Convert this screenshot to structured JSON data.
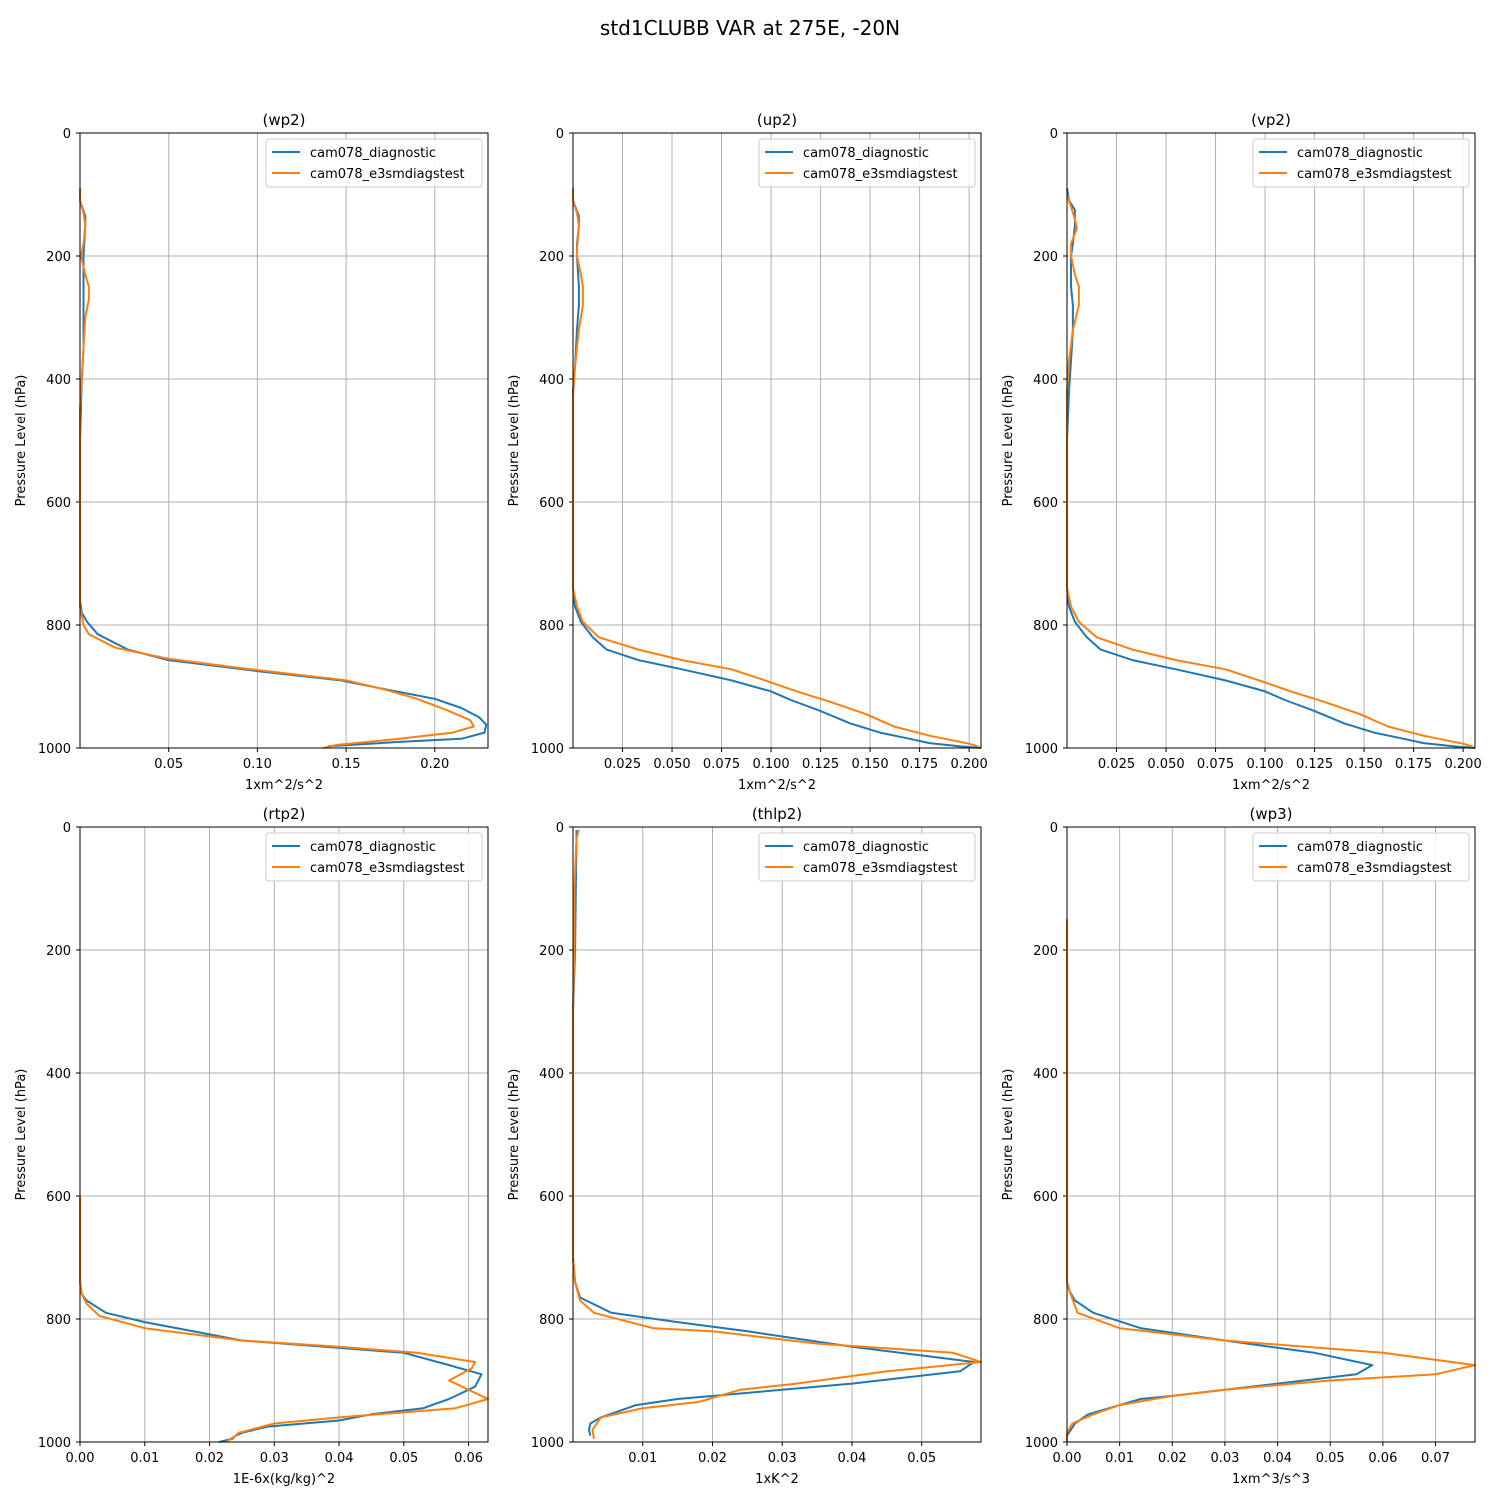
{
  "figure": {
    "suptitle": "std1CLUBB VAR at 275E, -20N",
    "colors": {
      "series0": "#1f77b4",
      "series1": "#ff7f0e",
      "grid": "#b0b0b0"
    }
  },
  "chart_data": [
    {
      "type": "line",
      "title": "(wp2)",
      "xlabel": "1xm^2/s^2",
      "ylabel": "Pressure Level (hPa)",
      "xlim": [
        0.0,
        0.23
      ],
      "ylim": [
        1000,
        0
      ],
      "xticks": [
        0.05,
        0.1,
        0.15,
        0.2
      ],
      "xtick_labels": [
        "0.05",
        "0.10",
        "0.15",
        "0.20"
      ],
      "yticks": [
        0,
        200,
        400,
        600,
        800,
        1000
      ],
      "ytick_labels": [
        "0",
        "200",
        "400",
        "600",
        "800",
        "1000"
      ],
      "grid": true,
      "legend": "upper right",
      "series": [
        {
          "name": "cam078_diagnostic",
          "color": "#1f77b4",
          "x": [
            0,
            0,
            0.003,
            0.003,
            0.002,
            0.002,
            0.002,
            0.002,
            0.002,
            0.001,
            0.0005,
            0,
            0,
            0,
            0,
            0,
            0.001,
            0.004,
            0.01,
            0.027,
            0.05,
            0.1,
            0.147,
            0.173,
            0.2,
            0.215,
            0.225,
            0.229,
            0.228,
            0.215,
            0.18,
            0.14
          ],
          "y": [
            90,
            110,
            135,
            150,
            200,
            250,
            280,
            300,
            350,
            400,
            450,
            500,
            600,
            700,
            740,
            760,
            780,
            795,
            815,
            840,
            857,
            875,
            890,
            905,
            920,
            935,
            950,
            962,
            975,
            985,
            990,
            997
          ]
        },
        {
          "name": "cam078_e3smdiagstest",
          "color": "#ff7f0e",
          "x": [
            0,
            0,
            0.002,
            0.003,
            0.002,
            0.0005,
            0.003,
            0.005,
            0.005,
            0.003,
            0.002,
            0.001,
            0,
            0,
            0,
            0,
            0.002,
            0.005,
            0.02,
            0.05,
            0.09,
            0.15,
            0.172,
            0.19,
            0.208,
            0.22,
            0.222,
            0.21,
            0.18,
            0.145,
            0.137
          ],
          "y": [
            90,
            110,
            130,
            150,
            180,
            200,
            230,
            250,
            270,
            300,
            350,
            400,
            450,
            600,
            740,
            770,
            800,
            815,
            837,
            855,
            870,
            890,
            905,
            920,
            940,
            955,
            965,
            975,
            985,
            995,
            1000
          ]
        }
      ]
    },
    {
      "type": "line",
      "title": "(up2)",
      "xlabel": "1xm^2/s^2",
      "ylabel": "Pressure Level (hPa)",
      "xlim": [
        0.0,
        0.206
      ],
      "ylim": [
        1000,
        0
      ],
      "xticks": [
        0.025,
        0.05,
        0.075,
        0.1,
        0.125,
        0.15,
        0.175,
        0.2
      ],
      "xtick_labels": [
        "0.025",
        "0.050",
        "0.075",
        "0.100",
        "0.125",
        "0.150",
        "0.175",
        "0.200"
      ],
      "yticks": [
        0,
        200,
        400,
        600,
        800,
        1000
      ],
      "ytick_labels": [
        "0",
        "200",
        "400",
        "600",
        "800",
        "1000"
      ],
      "grid": true,
      "legend": "upper right",
      "series": [
        {
          "name": "cam078_diagnostic",
          "color": "#1f77b4",
          "x": [
            0,
            0,
            0.003,
            0.003,
            0.002,
            0.002,
            0.003,
            0.003,
            0.002,
            0.001,
            0,
            0,
            0,
            0,
            0,
            0.001,
            0.004,
            0.01,
            0.017,
            0.033,
            0.055,
            0.08,
            0.1,
            0.11,
            0.125,
            0.14,
            0.155,
            0.17,
            0.18,
            0.195,
            0.206
          ],
          "y": [
            90,
            110,
            135,
            150,
            180,
            200,
            250,
            280,
            320,
            380,
            420,
            500,
            600,
            700,
            740,
            770,
            795,
            820,
            840,
            857,
            872,
            890,
            908,
            922,
            940,
            960,
            975,
            985,
            992,
            997,
            1000
          ]
        },
        {
          "name": "cam078_e3smdiagstest",
          "color": "#ff7f0e",
          "x": [
            0,
            0,
            0.002,
            0.003,
            0.002,
            0.002,
            0.004,
            0.005,
            0.005,
            0.003,
            0.001,
            0,
            0,
            0,
            0.002,
            0.005,
            0.013,
            0.033,
            0.055,
            0.08,
            0.097,
            0.113,
            0.13,
            0.148,
            0.162,
            0.18,
            0.2,
            0.205
          ],
          "y": [
            90,
            110,
            130,
            150,
            190,
            200,
            230,
            250,
            280,
            320,
            380,
            430,
            600,
            740,
            770,
            795,
            820,
            840,
            857,
            872,
            890,
            908,
            925,
            945,
            965,
            980,
            993,
            998
          ]
        }
      ]
    },
    {
      "type": "line",
      "title": "(vp2)",
      "xlabel": "1xm^2/s^2",
      "ylabel": "Pressure Level (hPa)",
      "xlim": [
        0.0,
        0.206
      ],
      "ylim": [
        1000,
        0
      ],
      "xticks": [
        0.025,
        0.05,
        0.075,
        0.1,
        0.125,
        0.15,
        0.175,
        0.2
      ],
      "xtick_labels": [
        "0.025",
        "0.050",
        "0.075",
        "0.100",
        "0.125",
        "0.150",
        "0.175",
        "0.200"
      ],
      "yticks": [
        0,
        200,
        400,
        600,
        800,
        1000
      ],
      "ytick_labels": [
        "0",
        "200",
        "400",
        "600",
        "800",
        "1000"
      ],
      "grid": true,
      "legend": "upper right",
      "series": [
        {
          "name": "cam078_diagnostic",
          "color": "#1f77b4",
          "x": [
            0,
            0.001,
            0.004,
            0.004,
            0.003,
            0.002,
            0.002,
            0.003,
            0.003,
            0.002,
            0.001,
            0,
            0,
            0,
            0,
            0.001,
            0.004,
            0.01,
            0.017,
            0.033,
            0.055,
            0.08,
            0.1,
            0.11,
            0.125,
            0.14,
            0.155,
            0.17,
            0.18,
            0.195,
            0.206
          ],
          "y": [
            90,
            110,
            125,
            150,
            180,
            200,
            250,
            280,
            320,
            370,
            420,
            500,
            600,
            700,
            740,
            770,
            795,
            820,
            840,
            857,
            872,
            890,
            908,
            922,
            940,
            960,
            975,
            985,
            992,
            997,
            1000
          ]
        },
        {
          "name": "cam078_e3smdiagstest",
          "color": "#ff7f0e",
          "x": [
            0,
            0.002,
            0.004,
            0.005,
            0.002,
            0.002,
            0.004,
            0.006,
            0.006,
            0.003,
            0.001,
            0,
            0,
            0,
            0.002,
            0.006,
            0.015,
            0.033,
            0.055,
            0.08,
            0.097,
            0.113,
            0.13,
            0.148,
            0.162,
            0.18,
            0.2,
            0.205
          ],
          "y": [
            100,
            120,
            140,
            155,
            180,
            200,
            230,
            250,
            280,
            320,
            370,
            420,
            600,
            740,
            770,
            795,
            820,
            840,
            857,
            872,
            890,
            908,
            925,
            945,
            965,
            980,
            993,
            998
          ]
        }
      ]
    },
    {
      "type": "line",
      "title": "(rtp2)",
      "xlabel": "1E-6x(kg/kg)^2",
      "ylabel": "Pressure Level (hPa)",
      "xlim": [
        0.0,
        0.063
      ],
      "ylim": [
        1000,
        0
      ],
      "xticks": [
        0.0,
        0.01,
        0.02,
        0.03,
        0.04,
        0.05,
        0.06
      ],
      "xtick_labels": [
        "0.00",
        "0.01",
        "0.02",
        "0.03",
        "0.04",
        "0.05",
        "0.06"
      ],
      "yticks": [
        0,
        200,
        400,
        600,
        800,
        1000
      ],
      "ytick_labels": [
        "0",
        "200",
        "400",
        "600",
        "800",
        "1000"
      ],
      "grid": true,
      "legend": "upper right",
      "series": [
        {
          "name": "cam078_diagnostic",
          "color": "#1f77b4",
          "x": [
            0,
            0,
            0,
            0.0003,
            0.001,
            0.004,
            0.01,
            0.02,
            0.025,
            0.05,
            0.057,
            0.062,
            0.061,
            0.057,
            0.053,
            0.045,
            0.04,
            0.029,
            0.025,
            0.024,
            0.0235,
            0.0215
          ],
          "y": [
            600,
            700,
            740,
            760,
            770,
            790,
            805,
            825,
            835,
            855,
            875,
            890,
            910,
            930,
            945,
            955,
            965,
            975,
            985,
            990,
            995,
            1000
          ]
        },
        {
          "name": "cam078_e3smdiagstest",
          "color": "#ff7f0e",
          "x": [
            0,
            0,
            0,
            0.0003,
            0.001,
            0.003,
            0.01,
            0.025,
            0.04,
            0.052,
            0.061,
            0.0605,
            0.057,
            0.063,
            0.058,
            0.04,
            0.03,
            0.0245,
            0.024,
            0.0225
          ],
          "y": [
            600,
            700,
            740,
            760,
            775,
            795,
            815,
            835,
            845,
            855,
            870,
            880,
            900,
            930,
            945,
            960,
            970,
            985,
            990,
            1000
          ]
        }
      ]
    },
    {
      "type": "line",
      "title": "(thlp2)",
      "xlabel": "1xK^2",
      "ylabel": "Pressure Level (hPa)",
      "xlim": [
        0.0,
        0.0585
      ],
      "ylim": [
        1000,
        0
      ],
      "xticks": [
        0.01,
        0.02,
        0.03,
        0.04,
        0.05
      ],
      "xtick_labels": [
        "0.01",
        "0.02",
        "0.03",
        "0.04",
        "0.05"
      ],
      "yticks": [
        0,
        200,
        400,
        600,
        800,
        1000
      ],
      "ytick_labels": [
        "0",
        "200",
        "400",
        "600",
        "800",
        "1000"
      ],
      "grid": true,
      "legend": "upper right",
      "series": [
        {
          "name": "cam078_diagnostic",
          "color": "#1f77b4",
          "x": [
            0.0005,
            0.0005,
            0.0004,
            0.0003,
            0,
            0,
            0,
            0.0003,
            0.001,
            0.0055,
            0.015,
            0.025,
            0.04,
            0.0575,
            0.0555,
            0.04,
            0.015,
            0.009,
            0.0065,
            0.004,
            0.0025,
            0.0023,
            0.0025
          ],
          "y": [
            5,
            20,
            100,
            200,
            300,
            500,
            700,
            740,
            765,
            790,
            805,
            820,
            845,
            870,
            885,
            905,
            930,
            940,
            950,
            960,
            970,
            980,
            990
          ]
        },
        {
          "name": "cam078_e3smdiagstest",
          "color": "#ff7f0e",
          "x": [
            0.0008,
            0.0005,
            0.0002,
            0.0002,
            0,
            0,
            0,
            0.0003,
            0.001,
            0.003,
            0.0115,
            0.02,
            0.035,
            0.0545,
            0.0585,
            0.045,
            0.032,
            0.024,
            0.018,
            0.01,
            0.004,
            0.0028,
            0.003
          ],
          "y": [
            5,
            20,
            100,
            200,
            300,
            500,
            700,
            740,
            770,
            790,
            815,
            820,
            840,
            855,
            870,
            885,
            905,
            915,
            935,
            945,
            960,
            980,
            995
          ]
        }
      ]
    },
    {
      "type": "line",
      "title": "(wp3)",
      "xlabel": "1xm^3/s^3",
      "ylabel": "Pressure Level (hPa)",
      "xlim": [
        0.0,
        0.0775
      ],
      "ylim": [
        1000,
        0
      ],
      "xticks": [
        0.0,
        0.01,
        0.02,
        0.03,
        0.04,
        0.05,
        0.06,
        0.07
      ],
      "xtick_labels": [
        "0.00",
        "0.01",
        "0.02",
        "0.03",
        "0.04",
        "0.05",
        "0.06",
        "0.07"
      ],
      "yticks": [
        0,
        200,
        400,
        600,
        800,
        1000
      ],
      "ytick_labels": [
        "0",
        "200",
        "400",
        "600",
        "800",
        "1000"
      ],
      "grid": true,
      "legend": "upper right",
      "series": [
        {
          "name": "cam078_diagnostic",
          "color": "#1f77b4",
          "x": [
            0,
            0,
            0,
            0.0005,
            0.0015,
            0.005,
            0.014,
            0.03,
            0.047,
            0.058,
            0.055,
            0.04,
            0.03,
            0.02,
            0.014,
            0.01,
            0.004,
            0.0015,
            0,
            0
          ],
          "y": [
            600,
            700,
            740,
            755,
            770,
            790,
            815,
            835,
            855,
            875,
            890,
            905,
            915,
            925,
            930,
            940,
            955,
            970,
            990,
            1000
          ]
        },
        {
          "name": "cam078_e3smdiagstest",
          "color": "#ff7f0e",
          "x": [
            0,
            0,
            0,
            0.0005,
            0.002,
            0.01,
            0.03,
            0.06,
            0.0775,
            0.07,
            0.05,
            0.03,
            0.02,
            0.01,
            0.005,
            0.001,
            0,
            0,
            0
          ],
          "y": [
            150,
            300,
            740,
            755,
            790,
            815,
            835,
            855,
            875,
            890,
            900,
            915,
            925,
            940,
            955,
            970,
            985,
            995,
            1000
          ]
        }
      ]
    }
  ]
}
